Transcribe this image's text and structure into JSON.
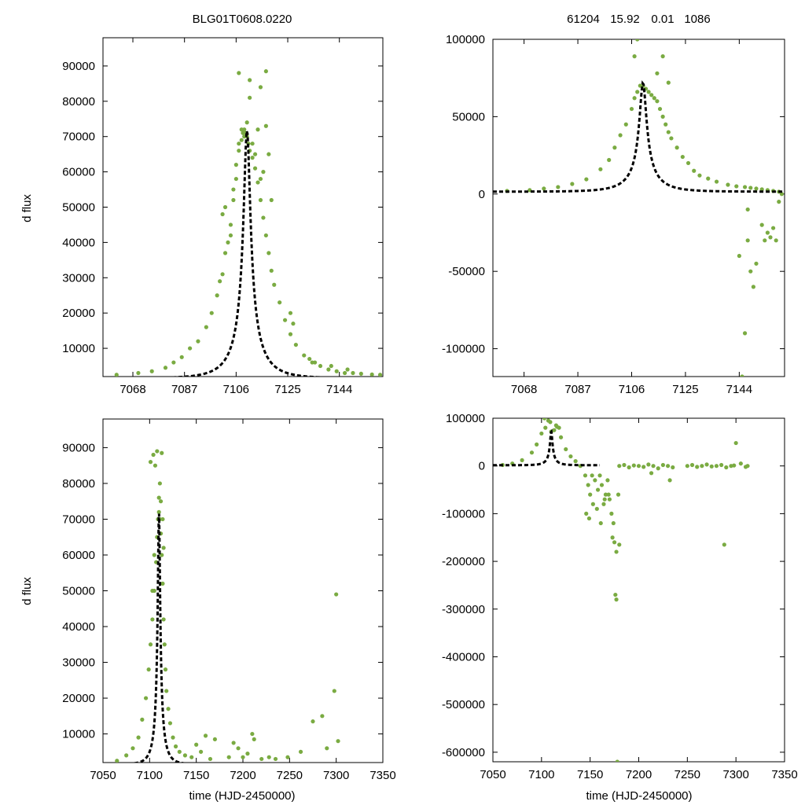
{
  "colors": {
    "points": "#7aab42",
    "model": "#000000",
    "axis": "#000000"
  },
  "figure": {
    "title_left": "BLG01T0608.0220",
    "title_right_parts": [
      "61204",
      "15.92",
      "0.01",
      "1086"
    ],
    "ylabel": "d flux",
    "xlabel": "time (HJD-2450000)"
  },
  "chart_data": [
    {
      "id": "top-left",
      "type": "scatter",
      "title": "BLG01T0608.0220",
      "xlabel": "",
      "ylabel": "d flux",
      "xlim": [
        7057,
        7160
      ],
      "ylim": [
        2000,
        98000
      ],
      "xticks": [
        7068,
        7087,
        7106,
        7125,
        7144
      ],
      "xtick_labels": [
        "7068",
        "7087",
        "7106",
        "7125",
        "7144"
      ],
      "yticks": [
        10000,
        20000,
        30000,
        40000,
        50000,
        60000,
        70000,
        80000,
        90000
      ],
      "ytick_labels": [
        "10000",
        "20000",
        "30000",
        "40000",
        "50000",
        "60000",
        "70000",
        "80000",
        "90000"
      ],
      "model": {
        "t0": 7110,
        "peak": 72000,
        "base": 1500,
        "tau": 11,
        "u0": 0.11
      },
      "series": [
        {
          "name": "data",
          "x": [
            7062,
            7070,
            7075,
            7080,
            7083,
            7086,
            7089,
            7092,
            7095,
            7097,
            7099,
            7100,
            7101,
            7102,
            7103,
            7104,
            7105,
            7106,
            7107,
            7108,
            7108.5,
            7109,
            7109.5,
            7110,
            7110.5,
            7111,
            7112,
            7113,
            7114,
            7115,
            7116,
            7117,
            7118,
            7119,
            7120,
            7122,
            7124,
            7126,
            7128,
            7131,
            7134,
            7137,
            7140,
            7143,
            7146,
            7149,
            7152,
            7156,
            7159,
            7101,
            7102,
            7104,
            7105,
            7106,
            7107,
            7108,
            7109,
            7110,
            7111,
            7112,
            7113,
            7114,
            7115,
            7116,
            7117,
            7118,
            7119,
            7107,
            7111,
            7115,
            7117,
            7126,
            7127,
            7133,
            7135,
            7141,
            7147
          ],
          "y": [
            2500,
            3000,
            3500,
            4500,
            6000,
            7500,
            10000,
            12000,
            16000,
            20000,
            25000,
            29000,
            31000,
            37000,
            40000,
            45000,
            52000,
            58000,
            66000,
            69000,
            71000,
            72000,
            71000,
            70000,
            68000,
            66000,
            64000,
            61000,
            57000,
            52000,
            47000,
            42000,
            37000,
            32000,
            28000,
            23000,
            18000,
            14000,
            11000,
            8000,
            6000,
            5000,
            4000,
            3500,
            3000,
            3000,
            2800,
            2600,
            2500,
            48000,
            50000,
            42000,
            55000,
            62000,
            68000,
            72000,
            70000,
            74000,
            81000,
            68000,
            65000,
            72000,
            58000,
            60000,
            73000,
            65000,
            52000,
            88000,
            86000,
            84000,
            88500,
            20000,
            17000,
            7000,
            6000,
            5000,
            4000
          ]
        }
      ]
    },
    {
      "id": "top-right",
      "type": "scatter",
      "title": "61204 15.92 0.01 1086",
      "xlabel": "",
      "ylabel": "",
      "xlim": [
        7057,
        7160
      ],
      "ylim": [
        -118000,
        100000
      ],
      "xticks": [
        7068,
        7087,
        7106,
        7125,
        7144
      ],
      "xtick_labels": [
        "7068",
        "7087",
        "7106",
        "7125",
        "7144"
      ],
      "yticks": [
        -100000,
        -50000,
        0,
        50000,
        100000
      ],
      "ytick_labels": [
        "-100000",
        "-50000",
        "0",
        "50000",
        "100000"
      ],
      "model": {
        "t0": 7110,
        "peak": 72000,
        "base": 1500,
        "tau": 11,
        "u0": 0.11
      },
      "series": [
        {
          "name": "data",
          "x": [
            7062,
            7070,
            7075,
            7080,
            7085,
            7090,
            7095,
            7098,
            7100,
            7102,
            7104,
            7106,
            7107,
            7108,
            7109,
            7110,
            7111,
            7112,
            7113,
            7114,
            7115,
            7116,
            7117,
            7118,
            7119,
            7120,
            7122,
            7124,
            7126,
            7128,
            7130,
            7133,
            7136,
            7140,
            7143,
            7146,
            7148,
            7150,
            7152,
            7154,
            7156,
            7158,
            7147,
            7147,
            7148,
            7149,
            7150,
            7146,
            7145,
            7144,
            7152,
            7153,
            7154,
            7155,
            7156,
            7157,
            7158,
            7159,
            7107,
            7117,
            7108,
            7115,
            7119
          ],
          "y": [
            2000,
            2500,
            3500,
            4500,
            6500,
            9500,
            16000,
            22000,
            30000,
            38000,
            45000,
            55000,
            62000,
            66000,
            70000,
            70000,
            68000,
            66000,
            64000,
            62000,
            60000,
            55000,
            50000,
            45000,
            40000,
            36000,
            30000,
            24000,
            20000,
            15000,
            12000,
            10000,
            8000,
            6000,
            5000,
            4500,
            4000,
            3500,
            3000,
            2500,
            2000,
            1500,
            -10000,
            -30000,
            -50000,
            -60000,
            -45000,
            -90000,
            -118000,
            -40000,
            -20000,
            -30000,
            -25000,
            -28000,
            -22000,
            -30000,
            -5000,
            0,
            89000,
            89000,
            100000,
            78000,
            72000
          ]
        }
      ]
    },
    {
      "id": "bottom-left",
      "type": "scatter",
      "title": "",
      "xlabel": "time (HJD-2450000)",
      "ylabel": "d flux",
      "xlim": [
        7050,
        7350
      ],
      "ylim": [
        2000,
        98000
      ],
      "xticks": [
        7050,
        7100,
        7150,
        7200,
        7250,
        7300,
        7350
      ],
      "xtick_labels": [
        "7050",
        "7100",
        "7150",
        "7200",
        "7250",
        "7300",
        "7350"
      ],
      "yticks": [
        10000,
        20000,
        30000,
        40000,
        50000,
        60000,
        70000,
        80000,
        90000
      ],
      "ytick_labels": [
        "10000",
        "20000",
        "30000",
        "40000",
        "50000",
        "60000",
        "70000",
        "80000",
        "90000"
      ],
      "model": {
        "t0": 7110,
        "peak": 72000,
        "base": 1500,
        "tau": 11,
        "u0": 0.11,
        "xmax": 7160
      },
      "series": [
        {
          "name": "data",
          "x": [
            7065,
            7075,
            7082,
            7088,
            7092,
            7096,
            7099,
            7101,
            7103,
            7105,
            7107,
            7108,
            7109,
            7110,
            7111,
            7112,
            7113,
            7114,
            7115,
            7116,
            7117,
            7118,
            7120,
            7122,
            7125,
            7128,
            7132,
            7138,
            7145,
            7150,
            7155,
            7160,
            7165,
            7170,
            7185,
            7190,
            7195,
            7200,
            7205,
            7210,
            7212,
            7220,
            7228,
            7235,
            7248,
            7262,
            7275,
            7285,
            7290,
            7298,
            7300,
            7302,
            7104,
            7106,
            7108,
            7110,
            7112,
            7114,
            7101,
            7105,
            7103,
            7113,
            7111,
            7115
          ],
          "y": [
            2500,
            4000,
            6000,
            9000,
            14000,
            20000,
            28000,
            35000,
            42000,
            50000,
            58000,
            65000,
            70000,
            72000,
            70000,
            66000,
            60000,
            52000,
            42000,
            35000,
            28000,
            22000,
            17000,
            13000,
            9000,
            6500,
            5000,
            4000,
            3500,
            7000,
            5000,
            9500,
            3000,
            8500,
            3500,
            7500,
            6000,
            3500,
            4500,
            10000,
            8500,
            3000,
            3500,
            3000,
            3500,
            5000,
            13500,
            15000,
            6000,
            22000,
            49000,
            8000,
            88000,
            85000,
            89000,
            76000,
            75000,
            70000,
            86000,
            60000,
            50000,
            88500,
            80000,
            62000
          ]
        }
      ]
    },
    {
      "id": "bottom-right",
      "type": "scatter",
      "title": "",
      "xlabel": "time (HJD-2450000)",
      "ylabel": "",
      "xlim": [
        7050,
        7350
      ],
      "ylim": [
        -620000,
        100000
      ],
      "xticks": [
        7050,
        7100,
        7150,
        7200,
        7250,
        7300,
        7350
      ],
      "xtick_labels": [
        "7050",
        "7100",
        "7150",
        "7200",
        "7250",
        "7300",
        "7350"
      ],
      "yticks": [
        -600000,
        -500000,
        -400000,
        -300000,
        -200000,
        -100000,
        0,
        100000
      ],
      "ytick_labels": [
        "-600000",
        "-500000",
        "-400000",
        "-300000",
        "-200000",
        "-100000",
        "0",
        "100000"
      ],
      "model": {
        "t0": 7110,
        "peak": 72000,
        "base": 1500,
        "tau": 11,
        "u0": 0.11,
        "xmax": 7160
      },
      "series": [
        {
          "name": "data",
          "x": [
            7060,
            7070,
            7080,
            7090,
            7095,
            7100,
            7104,
            7107,
            7110,
            7113,
            7116,
            7120,
            7125,
            7130,
            7135,
            7140,
            7145,
            7148,
            7150,
            7152,
            7155,
            7158,
            7160,
            7162,
            7164,
            7166,
            7168,
            7170,
            7172,
            7174,
            7175,
            7176,
            7177,
            7178,
            7180,
            7185,
            7190,
            7195,
            7200,
            7205,
            7210,
            7215,
            7220,
            7225,
            7230,
            7235,
            7250,
            7255,
            7260,
            7265,
            7270,
            7275,
            7280,
            7285,
            7290,
            7295,
            7298,
            7300,
            7305,
            7310,
            7312,
            7146,
            7149,
            7153,
            7157,
            7161,
            7165,
            7169,
            7173,
            7177,
            7179,
            7180,
            7288,
            7103,
            7109,
            7115,
            7118,
            7213,
            7232
          ],
          "y": [
            2000,
            5000,
            12000,
            28000,
            45000,
            68000,
            80000,
            95000,
            72000,
            75000,
            82000,
            60000,
            35000,
            20000,
            10000,
            0,
            -20000,
            -40000,
            -60000,
            -20000,
            -30000,
            -50000,
            -20000,
            -40000,
            -80000,
            -60000,
            -30000,
            -70000,
            -100000,
            -120000,
            -160000,
            -270000,
            -280000,
            -620000,
            0,
            2000,
            -3000,
            1000,
            0,
            -2000,
            3000,
            0,
            -5000,
            2000,
            0,
            -3000,
            0,
            2000,
            -2000,
            0,
            3000,
            -1000,
            0,
            2000,
            -3000,
            0,
            1000,
            48000,
            5000,
            -2000,
            0,
            -100000,
            -110000,
            -80000,
            -90000,
            -120000,
            -70000,
            -60000,
            -150000,
            -180000,
            -60000,
            -165000,
            -165000,
            100000,
            92000,
            85000,
            80000,
            -15000,
            -30000
          ]
        }
      ]
    }
  ]
}
